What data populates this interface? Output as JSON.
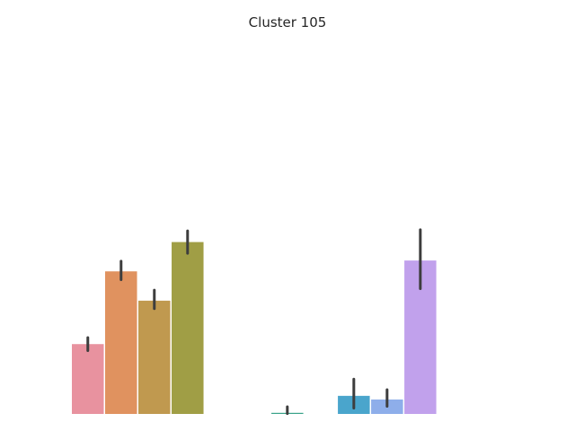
{
  "chart_data": {
    "type": "bar",
    "title": "Cluster 105",
    "xlabel": "",
    "ylabel": "",
    "grid": false,
    "legend": "none",
    "axes_visible": false,
    "ylim": [
      0,
      100
    ],
    "bars": [
      {
        "value": 19.3,
        "err_low": 17.5,
        "err_high": 21.1,
        "color": "#e8929f"
      },
      {
        "value": 39.4,
        "err_low": 37.1,
        "err_high": 42.2,
        "color": "#e0925f"
      },
      {
        "value": 31.3,
        "err_low": 29.1,
        "err_high": 34.2,
        "color": "#c0994f"
      },
      {
        "value": 47.5,
        "err_low": 44.4,
        "err_high": 50.6,
        "color": "#a09e45"
      },
      {
        "value": 0,
        "err_low": 0,
        "err_high": 0,
        "color": "#ffffff"
      },
      {
        "value": 0,
        "err_low": 0,
        "err_high": 0,
        "color": "#ffffff"
      },
      {
        "value": 0.3,
        "err_low": 0.1,
        "err_high": 2.0,
        "color": "#3aa38a"
      },
      {
        "value": 0,
        "err_low": 0,
        "err_high": 0,
        "color": "#ffffff"
      },
      {
        "value": 5.0,
        "err_low": 1.6,
        "err_high": 9.6,
        "color": "#4aa5cc"
      },
      {
        "value": 4.0,
        "err_low": 2.1,
        "err_high": 6.7,
        "color": "#8eaeea"
      },
      {
        "value": 42.4,
        "err_low": 34.6,
        "err_high": 50.9,
        "color": "#c1a1ec"
      }
    ]
  }
}
